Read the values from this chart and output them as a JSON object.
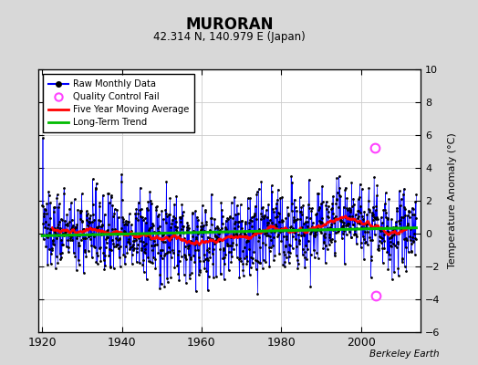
{
  "title": "MURORAN",
  "subtitle": "42.314 N, 140.979 E (Japan)",
  "ylabel": "Temperature Anomaly (°C)",
  "credit": "Berkeley Earth",
  "year_start": 1920,
  "year_end": 2013,
  "ylim": [
    -6,
    10
  ],
  "yticks": [
    -6,
    -4,
    -2,
    0,
    2,
    4,
    6,
    8,
    10
  ],
  "xticks": [
    1920,
    1940,
    1960,
    1980,
    2000
  ],
  "bg_color": "#d8d8d8",
  "plot_bg_color": "#ffffff",
  "line_color": "#0000ff",
  "ma_color": "#ff0000",
  "trend_color": "#00bb00",
  "qc_color": "#ff44ff",
  "grid_color": "#cccccc",
  "seed": 137,
  "qc_years": [
    2003.5,
    2003.75
  ],
  "qc_vals": [
    5.2,
    -3.8
  ],
  "ma_window": 60,
  "noise_scale": 1.6,
  "trend_slope": 0.005
}
